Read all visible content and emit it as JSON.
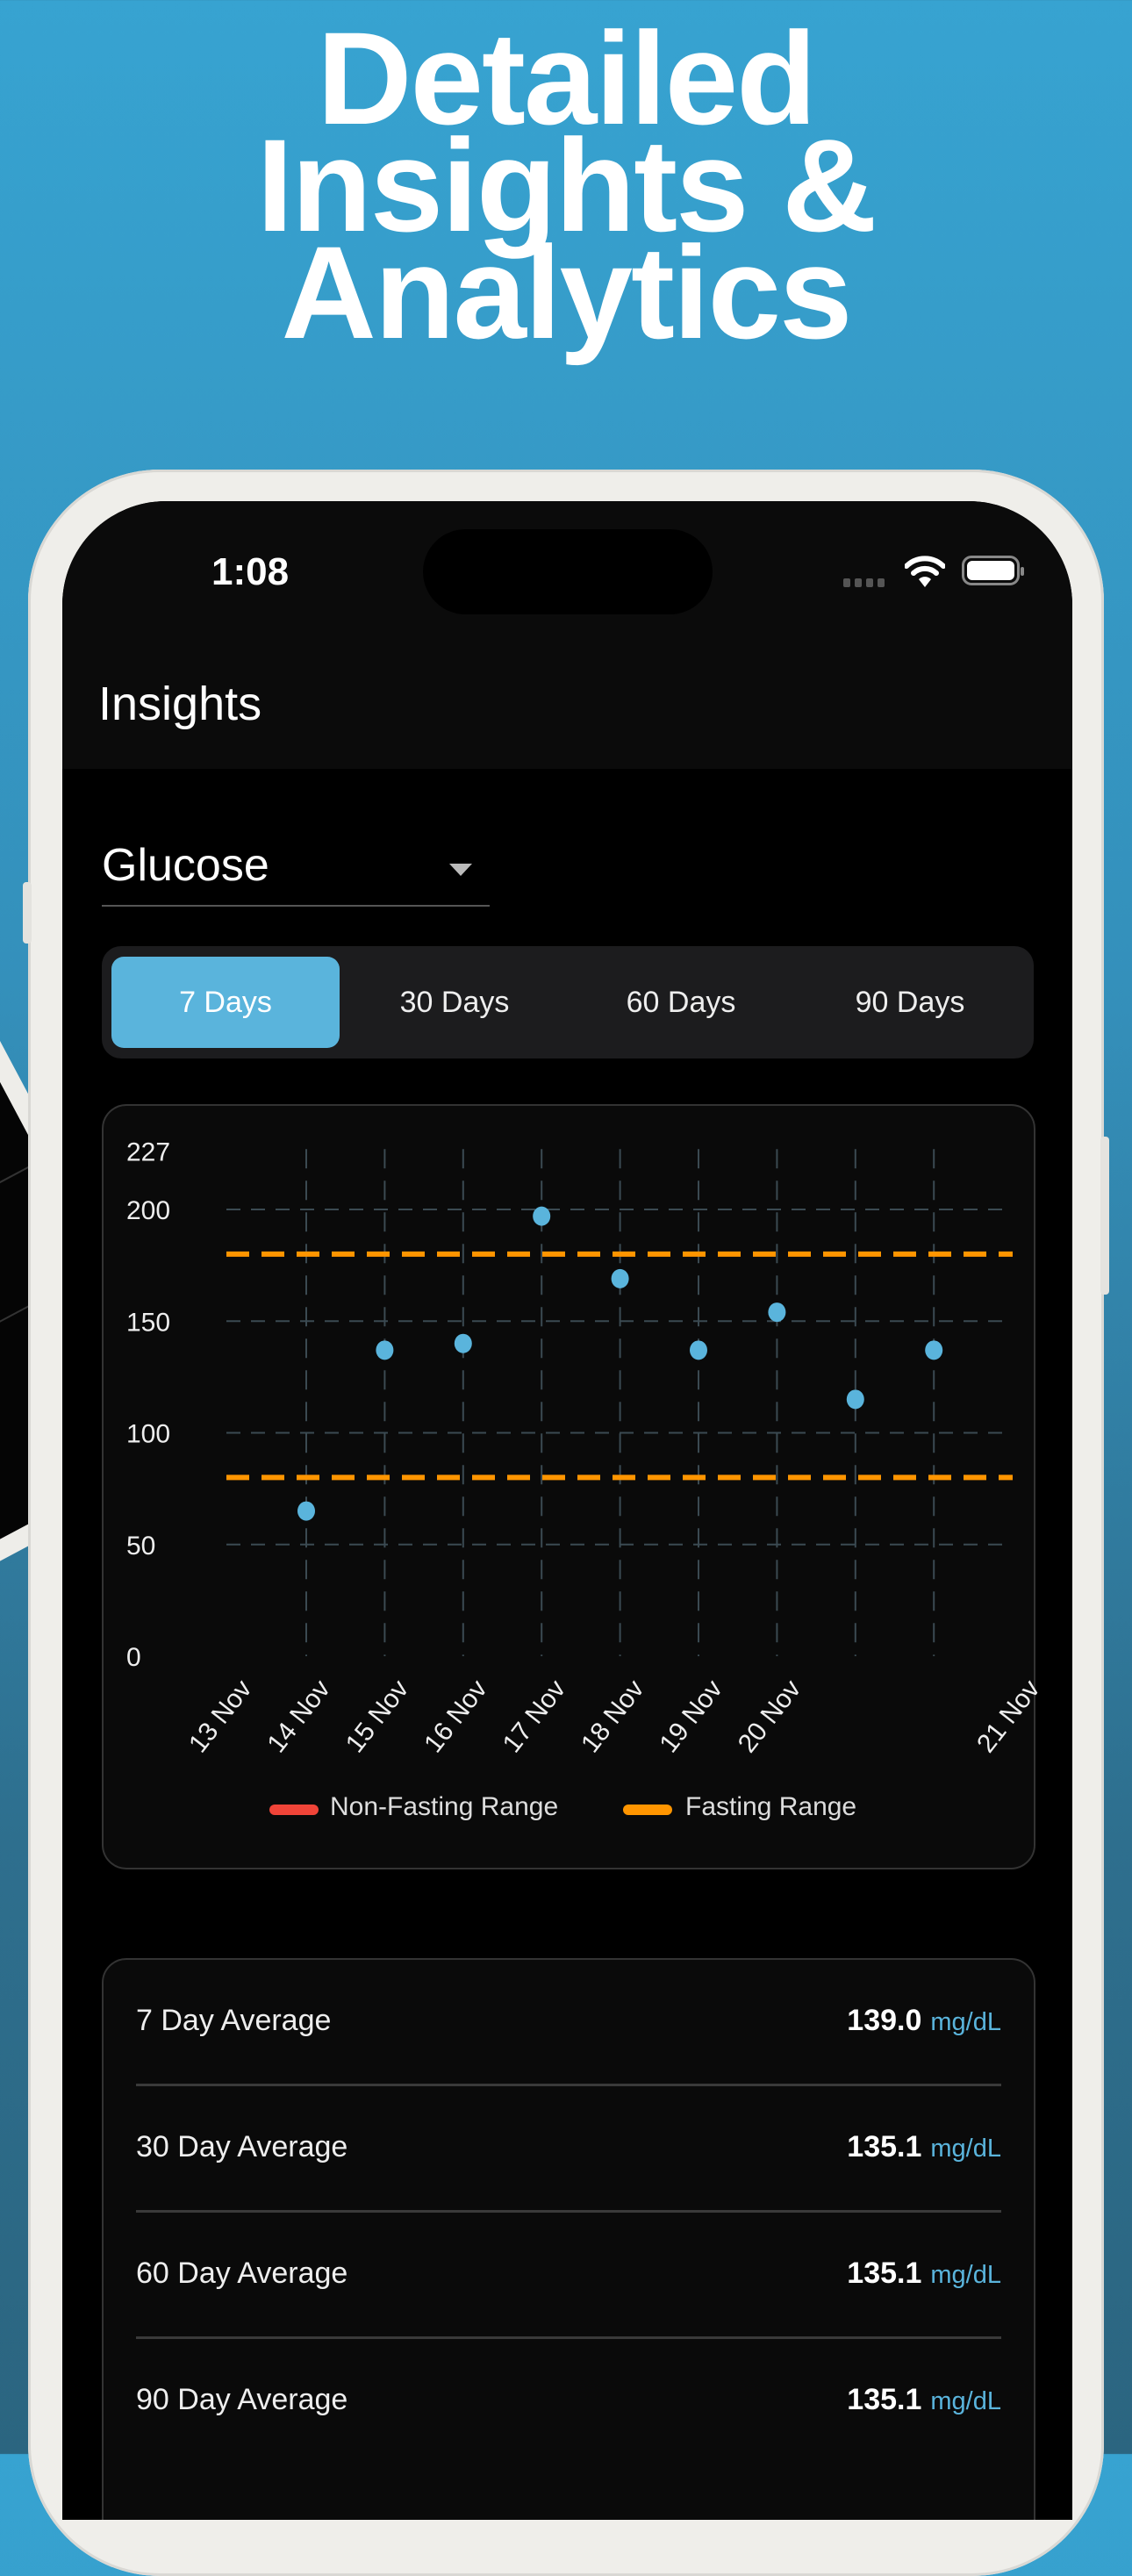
{
  "headline": [
    "Detailed",
    "Insights &",
    "Analytics"
  ],
  "status_bar": {
    "time": "1:08",
    "icons": [
      "signal-icon",
      "wifi-icon",
      "battery-icon"
    ]
  },
  "header": {
    "title": "Insights"
  },
  "metric_select": {
    "value": "Glucose",
    "icon": "chevron-down-icon"
  },
  "range_tabs": [
    {
      "label": "7 Days",
      "selected": true
    },
    {
      "label": "30 Days",
      "selected": false
    },
    {
      "label": "60 Days",
      "selected": false
    },
    {
      "label": "90 Days",
      "selected": false
    }
  ],
  "colors": {
    "accent": "#5ab4dc",
    "fasting": "#ff9500",
    "non_fasting": "#f04438",
    "point": "#5ab4dc"
  },
  "chart_data": {
    "type": "scatter",
    "y_ticks": [
      "227",
      "200",
      "150",
      "100",
      "50",
      "0"
    ],
    "ylim": [
      0,
      227
    ],
    "x_ticks": [
      "13 Nov",
      "14 Nov",
      "15 Nov",
      "16 Nov",
      "17 Nov",
      "18 Nov",
      "19 Nov",
      "20 Nov",
      "21 Nov"
    ],
    "points": [
      65,
      137,
      140,
      197,
      169,
      137,
      154,
      115,
      137
    ],
    "reference_lines": [
      {
        "series": "Fasting Range",
        "value": 180
      },
      {
        "series": "Fasting Range",
        "value": 80
      }
    ],
    "grid": true,
    "legend": [
      "Non-Fasting Range",
      "Fasting Range"
    ],
    "legend_position": "bottom"
  },
  "averages": [
    {
      "label": "7 Day Average",
      "value": "139.0",
      "unit": "mg/dL"
    },
    {
      "label": "30 Day Average",
      "value": "135.1",
      "unit": "mg/dL"
    },
    {
      "label": "60 Day Average",
      "value": "135.1",
      "unit": "mg/dL"
    },
    {
      "label": "90 Day Average",
      "value": "135.1",
      "unit": "mg/dL"
    }
  ]
}
